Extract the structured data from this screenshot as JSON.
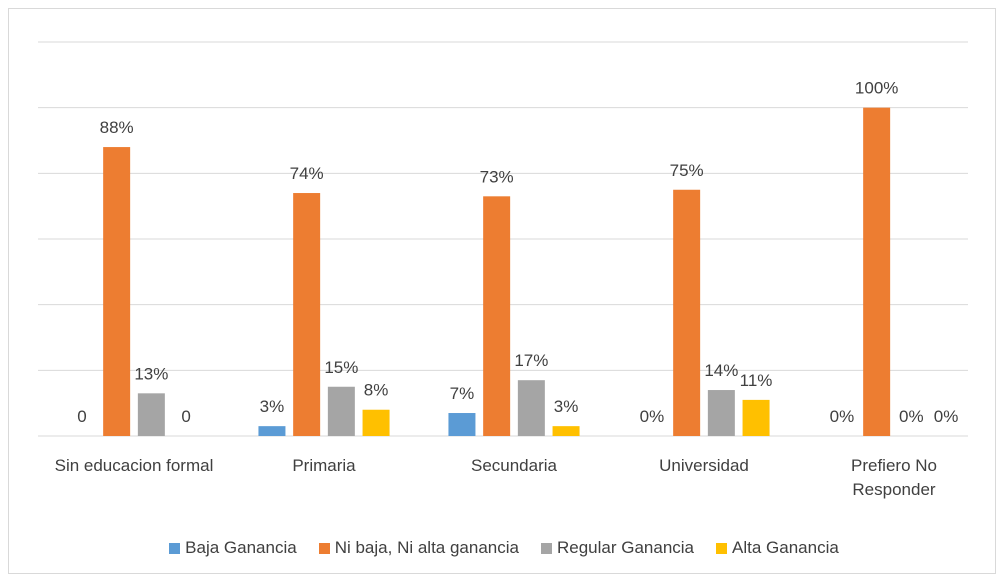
{
  "chart_data": {
    "type": "bar",
    "categories": [
      "Sin educacion formal",
      "Primaria",
      "Secundaria",
      "Universidad",
      "Prefiero No Responder"
    ],
    "series": [
      {
        "name": "Baja Ganancia",
        "color": "#5b9bd5",
        "values": [
          0,
          3,
          7,
          0,
          0
        ],
        "value_labels": [
          "0",
          "3%",
          "7%",
          "0%",
          "0%"
        ]
      },
      {
        "name": "Ni baja, Ni alta ganancia",
        "color": "#ed7d31",
        "values": [
          88,
          74,
          73,
          75,
          100
        ],
        "value_labels": [
          "88%",
          "74%",
          "73%",
          "75%",
          "100%"
        ]
      },
      {
        "name": "Regular Ganancia",
        "color": "#a5a5a5",
        "values": [
          13,
          15,
          17,
          14,
          0
        ],
        "value_labels": [
          "13%",
          "15%",
          "17%",
          "14%",
          "0%"
        ]
      },
      {
        "name": "Alta Ganancia",
        "color": "#ffc000",
        "values": [
          0,
          8,
          3,
          11,
          0
        ],
        "value_labels": [
          "0",
          "8%",
          "3%",
          "11%",
          "0%"
        ]
      }
    ],
    "ylim": [
      0,
      120
    ],
    "yticks": [
      0,
      20,
      40,
      60,
      80,
      100,
      120
    ],
    "grid": true,
    "legend": "bottom"
  }
}
